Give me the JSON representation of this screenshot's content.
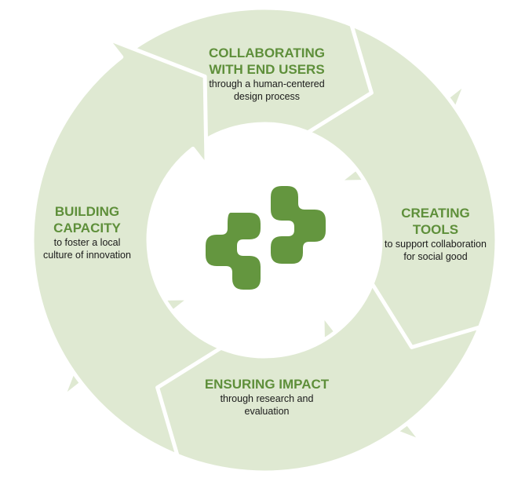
{
  "colors": {
    "arrow_fill": "#dfe9d2",
    "title": "#5e8f3a",
    "logo": "#64963f",
    "text": "#1a1a1a"
  },
  "stages": {
    "top": {
      "title_lines": [
        "COLLABORATING",
        "WITH END USERS"
      ],
      "desc_lines": [
        "through a human-centered",
        "design process"
      ]
    },
    "right": {
      "title_lines": [
        "CREATING",
        "TOOLS"
      ],
      "desc_lines": [
        "to support collaboration",
        "for social good"
      ]
    },
    "bottom": {
      "title_lines": [
        "ENSURING IMPACT"
      ],
      "desc_lines": [
        "through research and",
        "evaluation"
      ]
    },
    "left": {
      "title_lines": [
        "BUILDING",
        "CAPACITY"
      ],
      "desc_lines": [
        "to foster a local",
        "culture of innovation"
      ]
    }
  },
  "logo": {
    "icon": "bracket-logo-icon"
  }
}
